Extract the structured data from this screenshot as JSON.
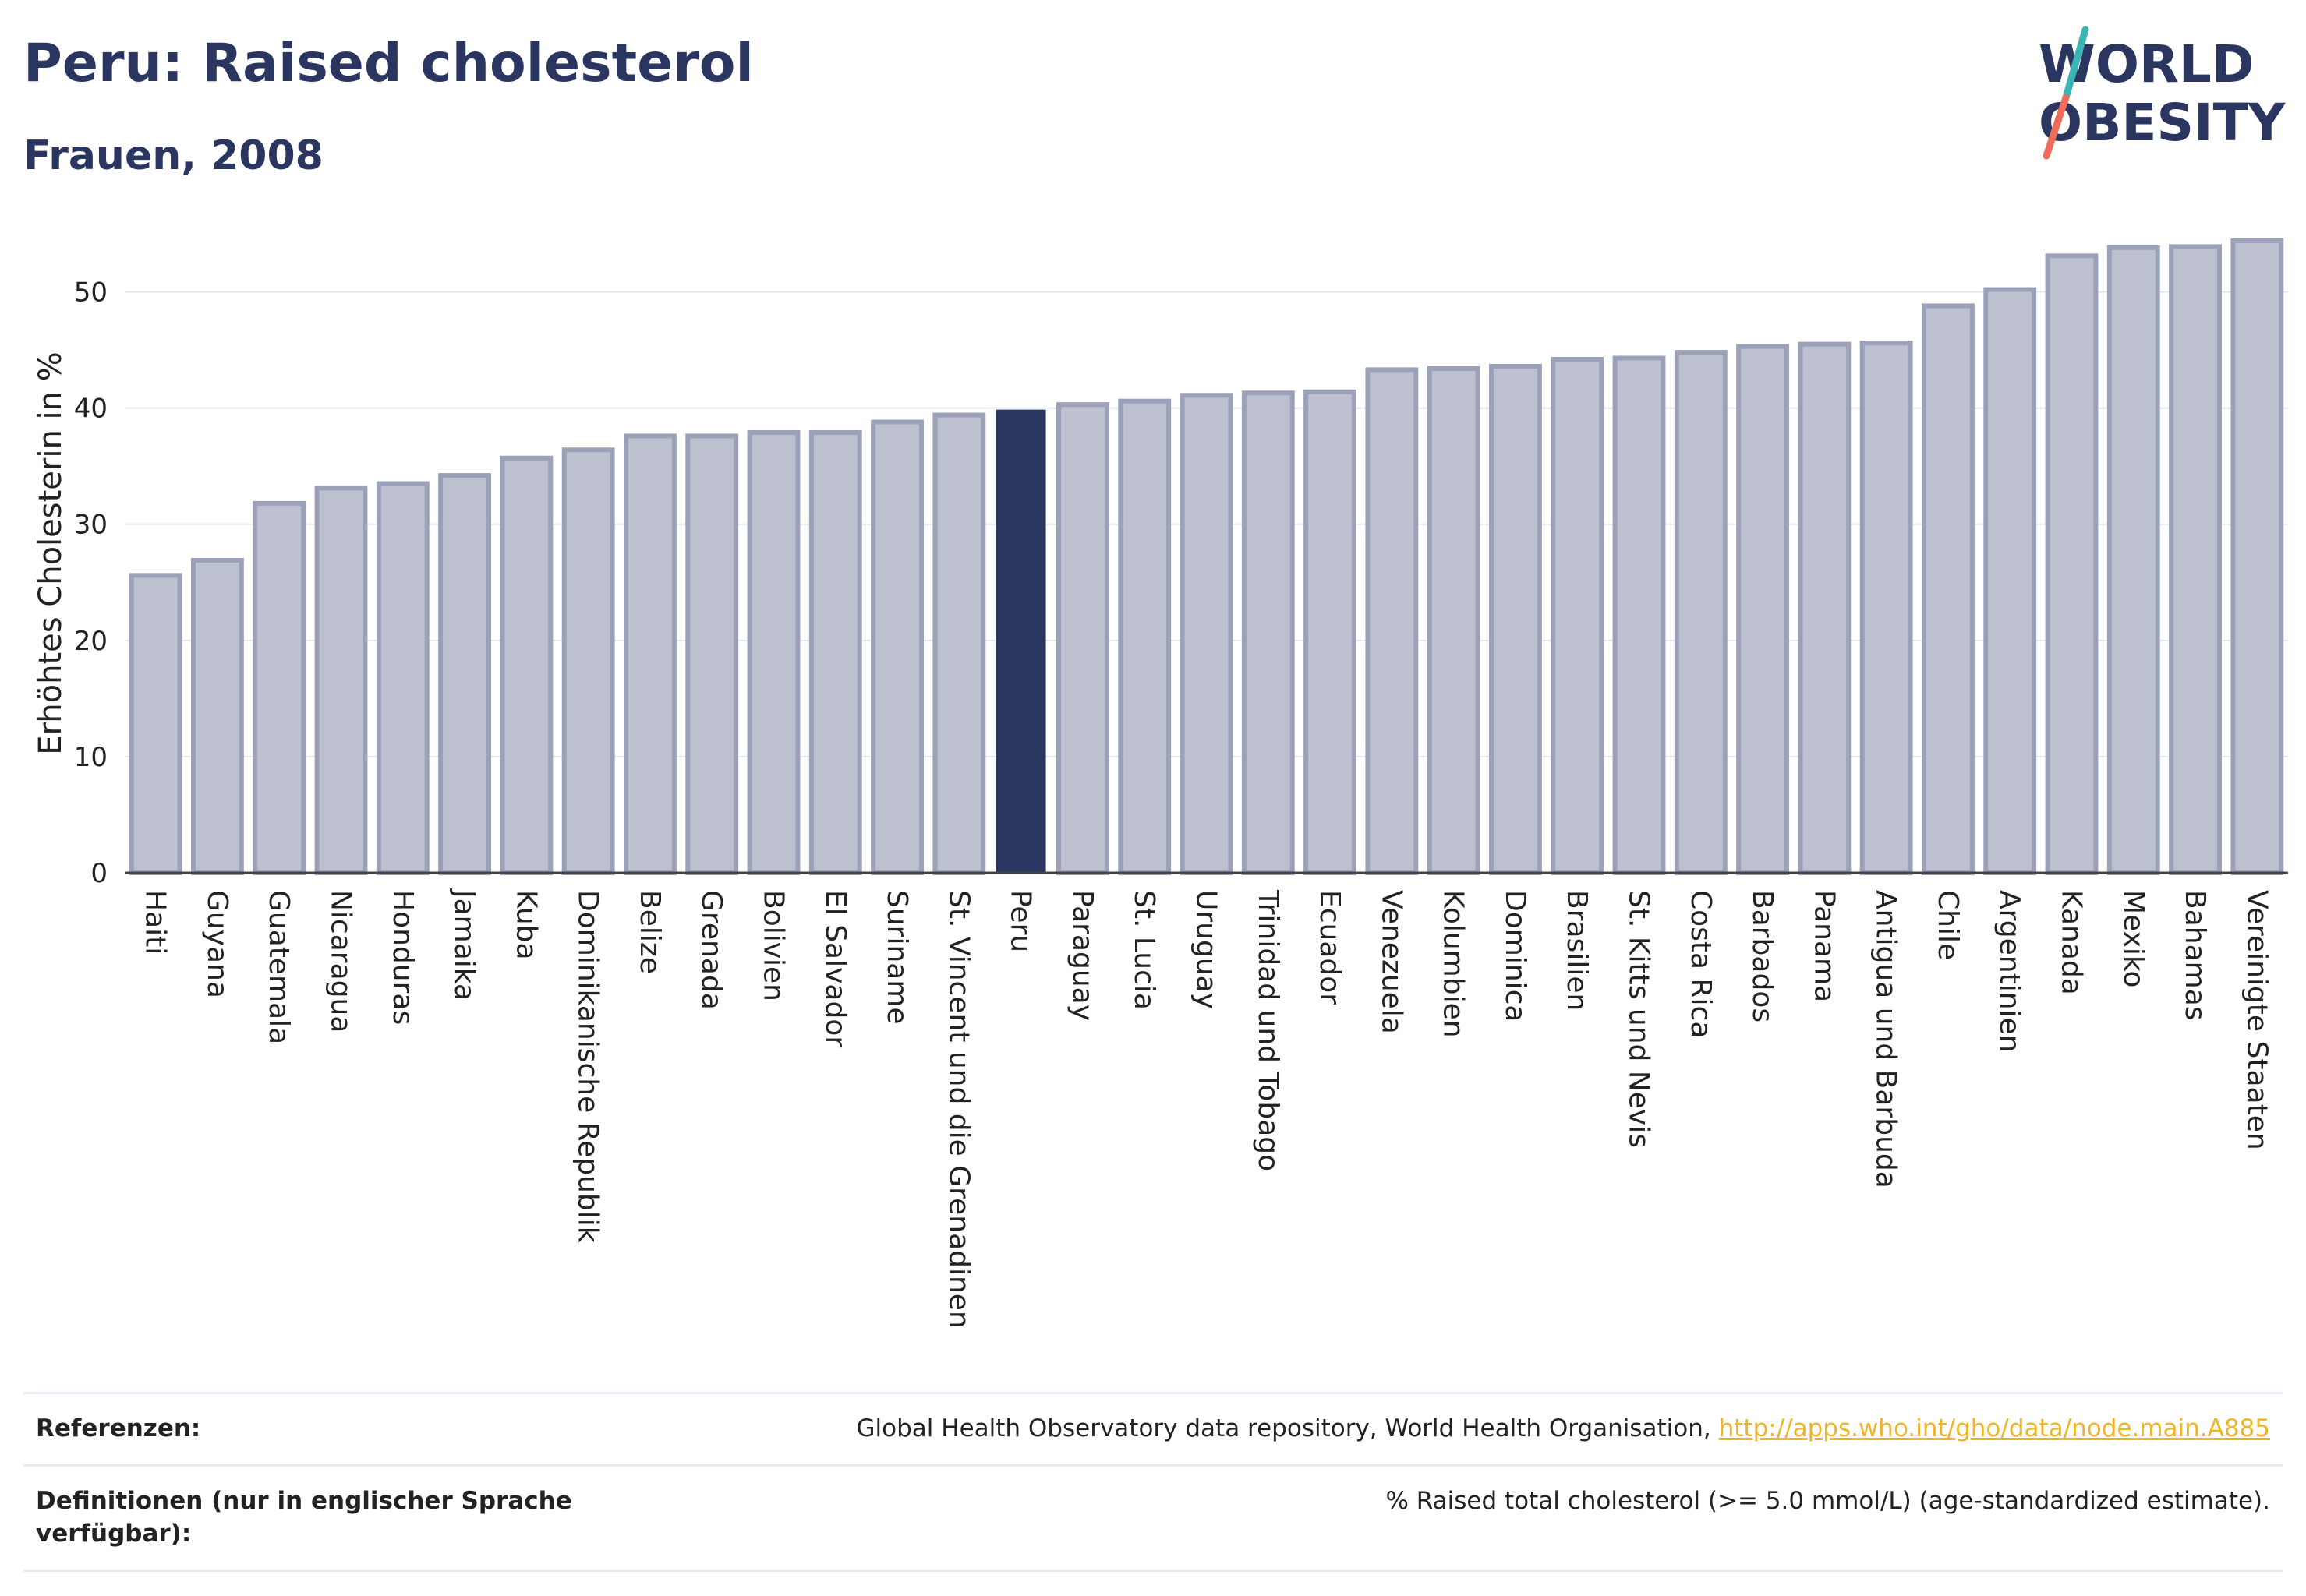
{
  "header": {
    "title": "Peru: Raised cholesterol",
    "subtitle": "Frauen, 2008"
  },
  "logo": {
    "line1": "WORLD",
    "line2": "OBESITY"
  },
  "colors": {
    "primary": "#2a3560",
    "bar_fill": "#bdc1cf",
    "bar_stroke": "#9aa1b8",
    "highlight": "#2a3560",
    "link": "#f0b429",
    "logo_teal": "#3ab4b4",
    "logo_coral": "#ef6c5a"
  },
  "chart_data": {
    "type": "bar",
    "ylabel": "Erhöhtes Cholesterin in %",
    "ylim": [
      0,
      55
    ],
    "yticks": [
      0,
      10,
      20,
      30,
      40,
      50
    ],
    "grid": true,
    "highlight": "Peru",
    "categories": [
      "Haiti",
      "Guyana",
      "Guatemala",
      "Nicaragua",
      "Honduras",
      "Jamaika",
      "Kuba",
      "Dominikanische Republik",
      "Belize",
      "Grenada",
      "Bolivien",
      "El Salvador",
      "Suriname",
      "St. Vincent und die Grenadinen",
      "Peru",
      "Paraguay",
      "St. Lucia",
      "Uruguay",
      "Trinidad und Tobago",
      "Ecuador",
      "Venezuela",
      "Kolumbien",
      "Dominica",
      "Brasilien",
      "St. Kitts und Nevis",
      "Costa Rica",
      "Barbados",
      "Panama",
      "Antigua und Barbuda",
      "Chile",
      "Argentinien",
      "Kanada",
      "Mexiko",
      "Bahamas",
      "Vereinigte Staaten"
    ],
    "values": [
      25.6,
      26.9,
      31.8,
      33.1,
      33.5,
      34.2,
      35.7,
      36.4,
      37.6,
      37.6,
      37.9,
      37.9,
      38.8,
      39.4,
      39.8,
      40.3,
      40.6,
      41.1,
      41.3,
      41.4,
      43.3,
      43.4,
      43.6,
      44.2,
      44.3,
      44.8,
      45.3,
      45.5,
      45.6,
      48.8,
      50.2,
      53.1,
      53.8,
      53.9,
      54.4
    ]
  },
  "references": {
    "label": "Referenzen:",
    "text": "Global Health Observatory data repository, World Health Organisation, ",
    "link": "http://apps.who.int/gho/data/node.main.A885"
  },
  "definitions": {
    "label": "Definitionen (nur in englischer Sprache verfügbar):",
    "text": "% Raised total cholesterol (>= 5.0 mmol/L) (age-standardized estimate)."
  }
}
